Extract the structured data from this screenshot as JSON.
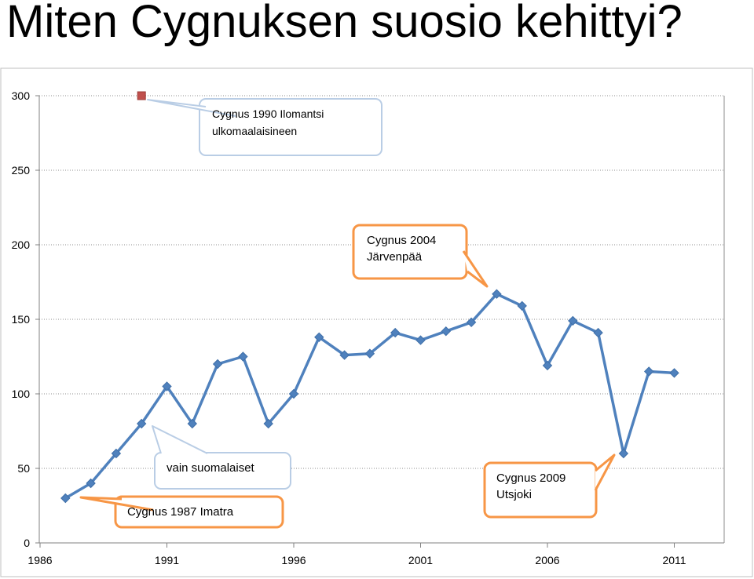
{
  "page": {
    "title": "Miten Cygnuksen suosio kehittyi?"
  },
  "chart_data": {
    "type": "line",
    "title": "",
    "xlabel": "",
    "ylabel": "",
    "xlim": [
      1986,
      2012
    ],
    "ylim": [
      0,
      300
    ],
    "x_ticks": [
      1986,
      1991,
      1996,
      2001,
      2006,
      2011
    ],
    "y_ticks": [
      0,
      50,
      100,
      150,
      200,
      250,
      300
    ],
    "grid": "horizontal dotted",
    "series": [
      {
        "color": "#4f81bd",
        "points": [
          [
            1987,
            30
          ],
          [
            1988,
            40
          ],
          [
            1989,
            60
          ],
          [
            1990,
            80
          ],
          [
            1991,
            105
          ],
          [
            1992,
            80
          ],
          [
            1993,
            120
          ],
          [
            1994,
            125
          ],
          [
            1995,
            80
          ],
          [
            1996,
            100
          ],
          [
            1997,
            138
          ],
          [
            1998,
            126
          ],
          [
            1999,
            127
          ],
          [
            2000,
            141
          ],
          [
            2001,
            136
          ],
          [
            2002,
            142
          ],
          [
            2003,
            148
          ],
          [
            2004,
            167
          ],
          [
            2005,
            159
          ],
          [
            2006,
            119
          ],
          [
            2007,
            149
          ],
          [
            2008,
            141
          ],
          [
            2009,
            60
          ],
          [
            2010,
            115
          ],
          [
            2011,
            114
          ]
        ]
      },
      {
        "color": "#c0504d",
        "points": [
          [
            1990,
            300
          ]
        ]
      }
    ],
    "annotations": [
      {
        "id": "ilomantsi",
        "lines": [
          "Cygnus 1990 Ilomantsi",
          "ulkomaalaisineen"
        ],
        "border": "#b9cde5"
      },
      {
        "id": "jarvenpaa",
        "lines": [
          "Cygnus 2004",
          "Järvenpää"
        ],
        "border": "#f79646"
      },
      {
        "id": "suomalaiset",
        "lines": [
          "vain suomalaiset"
        ],
        "border": "#b9cde5"
      },
      {
        "id": "imatra",
        "lines": [
          "Cygnus 1987 Imatra"
        ],
        "border": "#f79646"
      },
      {
        "id": "utsjoki",
        "lines": [
          "Cygnus 2009",
          "Utsjoki"
        ],
        "border": "#f79646"
      }
    ]
  }
}
